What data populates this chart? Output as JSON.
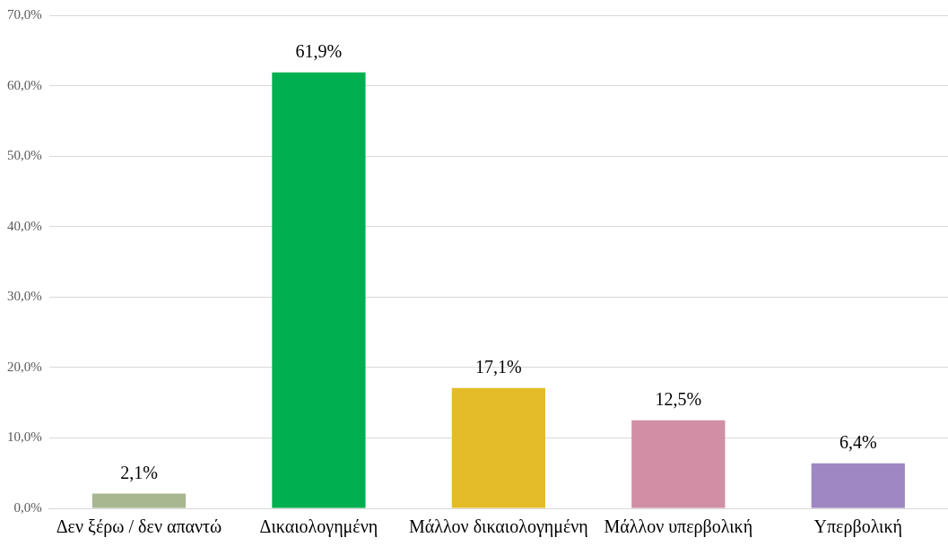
{
  "chart_data": {
    "type": "bar",
    "categories": [
      "Δεν ξέρω / δεν απαντώ",
      "Δικαιολογημένη",
      "Μάλλον δικαιολογημένη",
      "Μάλλον υπερβολική",
      "Υπερβολική"
    ],
    "values": [
      2.1,
      61.9,
      17.1,
      12.5,
      6.4
    ],
    "colors": [
      "#a9b791",
      "#00b050",
      "#e4bc2a",
      "#d08fa5",
      "#9e87c2"
    ],
    "value_labels": [
      "2,1%",
      "61,9%",
      "17,1%",
      "12,5%",
      "6,4%"
    ],
    "ylim": [
      0,
      70
    ],
    "yticks": [
      {
        "value": 0,
        "label": "0,0%"
      },
      {
        "value": 10,
        "label": "10,0%"
      },
      {
        "value": 20,
        "label": "20,0%"
      },
      {
        "value": 30,
        "label": "30,0%"
      },
      {
        "value": 40,
        "label": "40,0%"
      },
      {
        "value": 50,
        "label": "50,0%"
      },
      {
        "value": 60,
        "label": "60,0%"
      },
      {
        "value": 70,
        "label": "70,0%"
      }
    ],
    "grid": "y",
    "legend": false
  }
}
